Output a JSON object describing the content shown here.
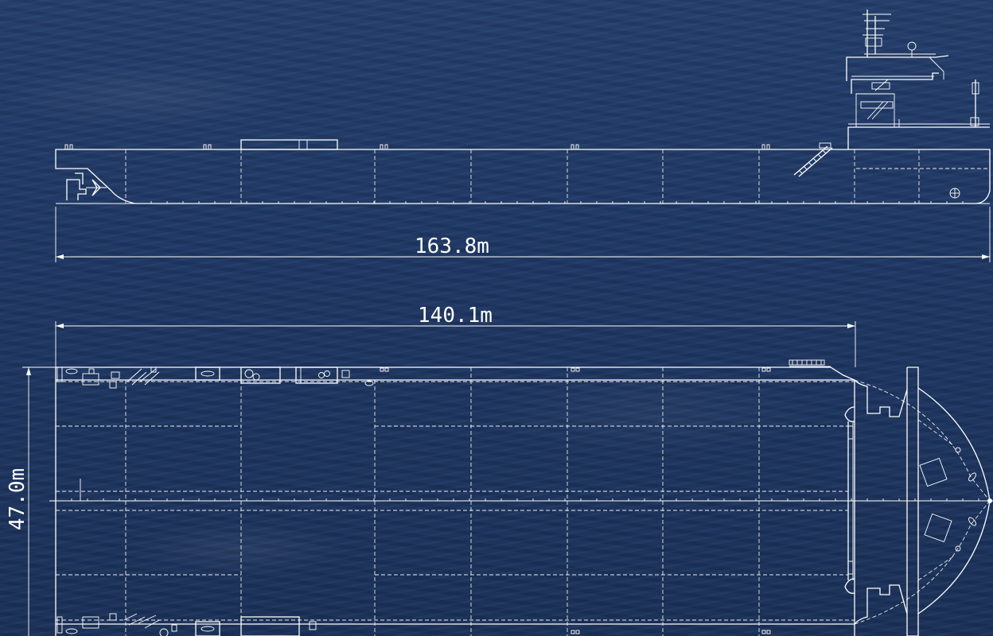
{
  "dimensions": {
    "length_overall": "163.8m",
    "length_deck": "140.1m",
    "breadth": "47.0m"
  },
  "colors": {
    "background_sea": "#1f3864",
    "linework": "#ffffff"
  }
}
